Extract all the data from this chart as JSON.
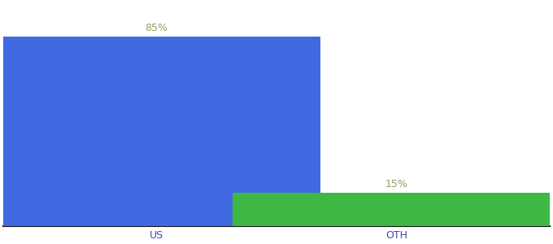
{
  "categories": [
    "US",
    "OTH"
  ],
  "values": [
    85,
    15
  ],
  "bar_colors": [
    "#4169E1",
    "#3CB843"
  ],
  "label_color": "#999966",
  "label_fontsize": 9,
  "tick_fontsize": 9,
  "tick_color": "#4444aa",
  "background_color": "#ffffff",
  "ylim": [
    0,
    100
  ],
  "bar_width": 0.6,
  "figsize": [
    6.8,
    3.0
  ],
  "dpi": 100,
  "value_labels": [
    "85%",
    "15%"
  ],
  "x_positions": [
    0.28,
    0.72
  ]
}
